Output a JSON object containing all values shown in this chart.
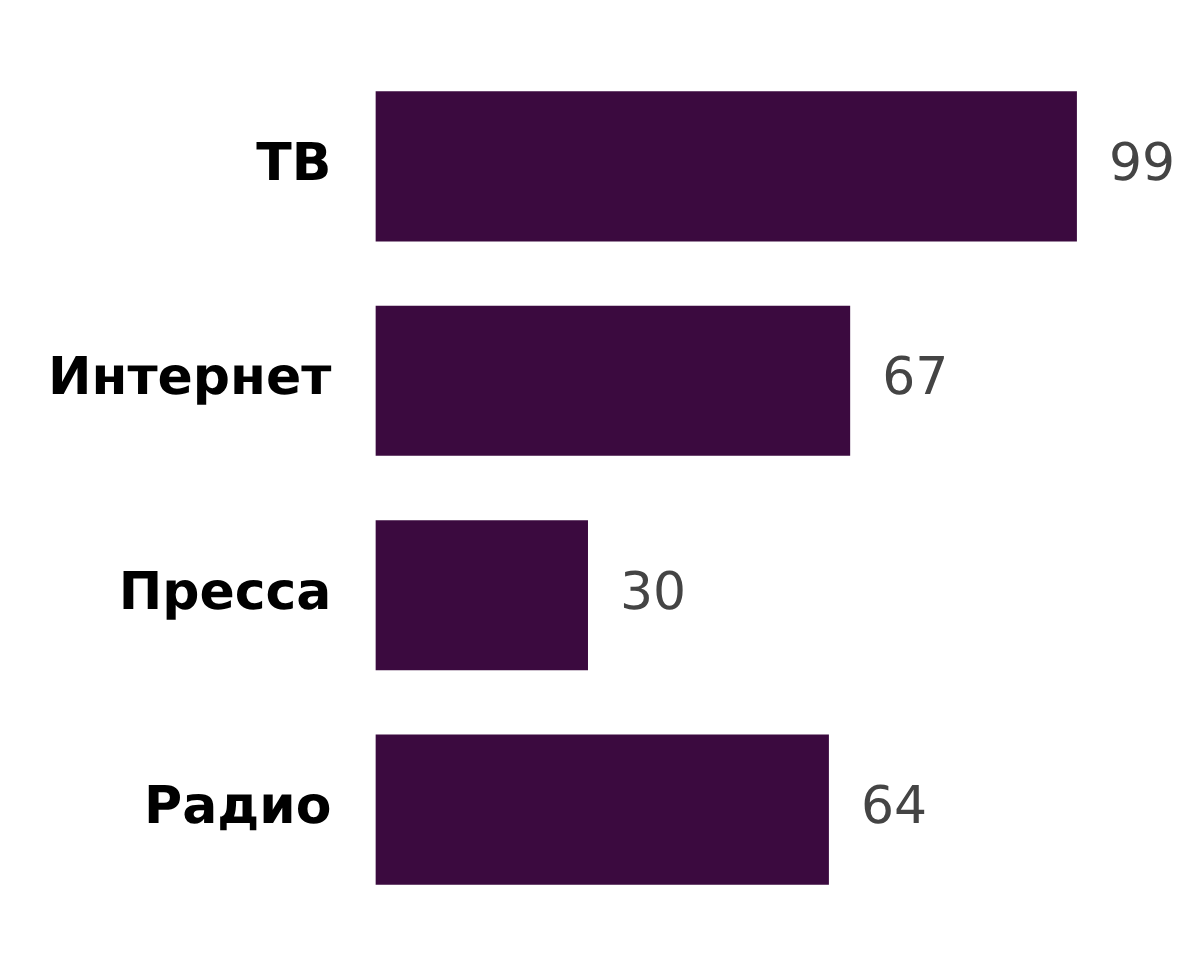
{
  "chart_data": {
    "type": "bar",
    "orientation": "horizontal",
    "categories": [
      "ТВ",
      "Интернет",
      "Пресса",
      "Радио"
    ],
    "values": [
      99,
      67,
      30,
      64
    ],
    "color": "#3b0a3f",
    "data_labels": true,
    "legend": false
  }
}
